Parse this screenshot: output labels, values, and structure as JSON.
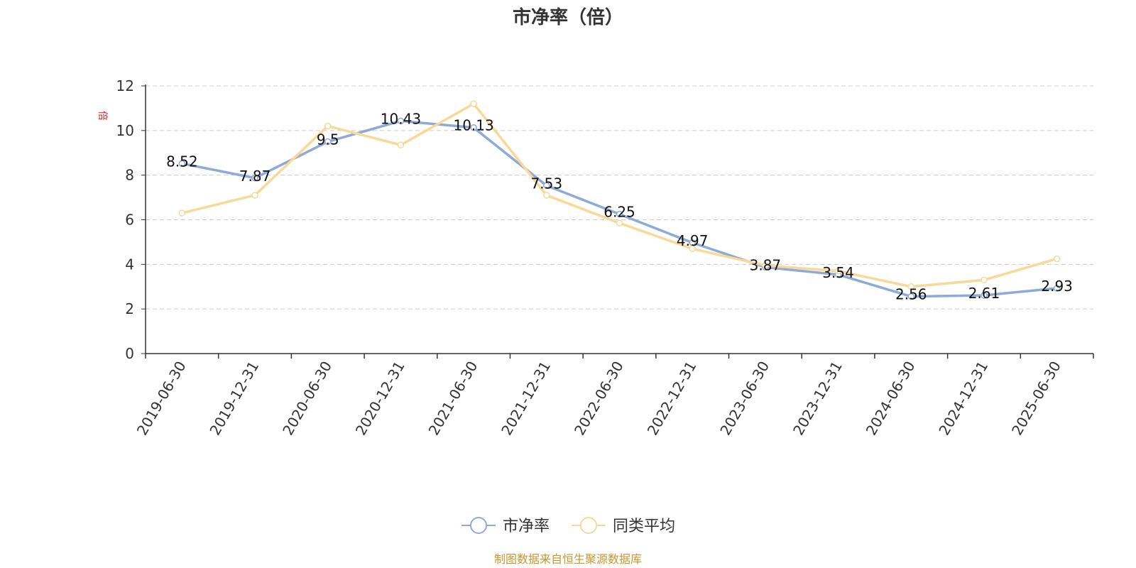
{
  "chart_data": {
    "type": "line",
    "title": "市净率（倍）",
    "ylabel": "倍",
    "categories": [
      "2019-06-30",
      "2019-12-31",
      "2020-06-30",
      "2020-12-31",
      "2021-06-30",
      "2021-12-31",
      "2022-06-30",
      "2022-12-31",
      "2023-06-30",
      "2023-12-31",
      "2024-06-30",
      "2024-12-31",
      "2025-06-30"
    ],
    "ylim": [
      0,
      12
    ],
    "yticks": [
      0,
      2,
      4,
      6,
      8,
      10,
      12
    ],
    "grid": true,
    "legend_position": "bottom",
    "series": [
      {
        "name": "市净率",
        "color": "#8eaad8",
        "values": [
          8.52,
          7.87,
          9.5,
          10.43,
          10.13,
          7.53,
          6.25,
          4.97,
          3.87,
          3.54,
          2.56,
          2.61,
          2.93
        ],
        "labels": [
          "8.52",
          "7.87",
          "9.5",
          "10.43",
          "10.13",
          "7.53",
          "6.25",
          "4.97",
          "3.87",
          "3.54",
          "2.56",
          "2.61",
          "2.93"
        ]
      },
      {
        "name": "同类平均",
        "color": "#f8d99a",
        "values": [
          6.3,
          7.1,
          10.2,
          9.35,
          11.2,
          7.1,
          5.85,
          4.7,
          3.95,
          3.7,
          3.0,
          3.3,
          4.25
        ]
      }
    ]
  },
  "source": "制图数据来自恒生聚源数据库"
}
